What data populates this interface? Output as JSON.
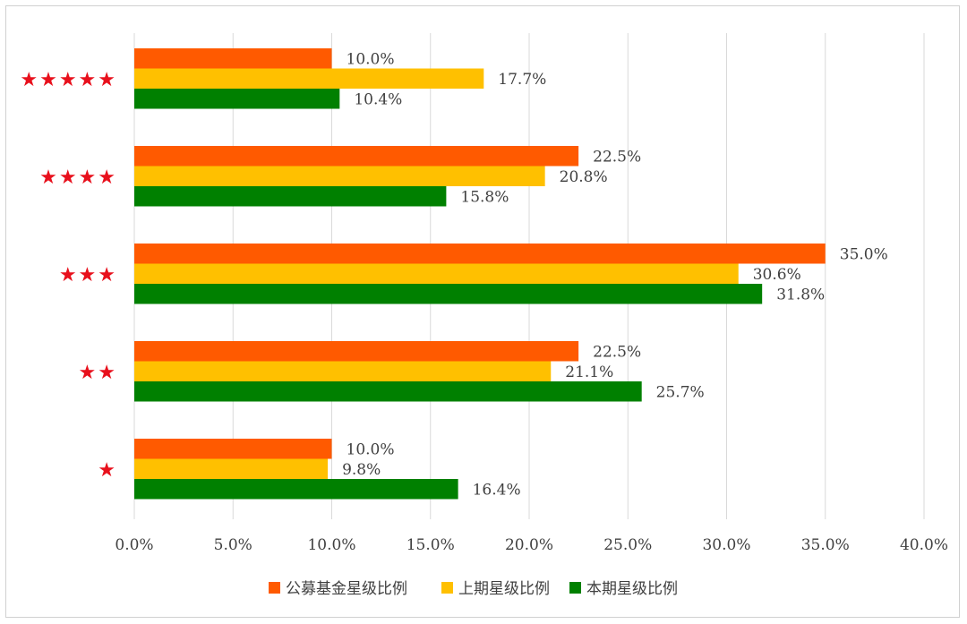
{
  "chart_data": {
    "type": "bar",
    "orientation": "horizontal",
    "categories": [
      "★★★★★",
      "★★★★",
      "★★★",
      "★★",
      "★"
    ],
    "series": [
      {
        "name": "公募基金星级比例",
        "color": "#ff5a00",
        "values": [
          10.0,
          22.5,
          35.0,
          22.5,
          10.0
        ],
        "labels": [
          "10.0%",
          "22.5%",
          "35.0%",
          "22.5%",
          "10.0%"
        ]
      },
      {
        "name": "上期星级比例",
        "color": "#ffc000",
        "values": [
          17.7,
          20.8,
          30.6,
          21.1,
          9.8
        ],
        "labels": [
          "17.7%",
          "20.8%",
          "30.6%",
          "21.1%",
          "9.8%"
        ]
      },
      {
        "name": "本期星级比例",
        "color": "#008000",
        "values": [
          10.4,
          15.8,
          31.8,
          25.7,
          16.4
        ],
        "labels": [
          "10.4%",
          "15.8%",
          "31.8%",
          "25.7%",
          "16.4%"
        ]
      }
    ],
    "xticks": [
      "0.0%",
      "5.0%",
      "10.0%",
      "15.0%",
      "20.0%",
      "25.0%",
      "30.0%",
      "35.0%",
      "40.0%"
    ],
    "xlim": [
      0,
      40
    ],
    "grid": true,
    "category_color": "#e8101c",
    "legend_position": "bottom"
  }
}
